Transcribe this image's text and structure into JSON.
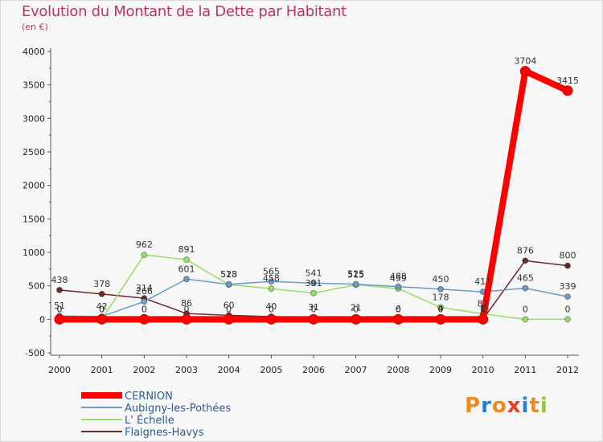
{
  "chart_data": {
    "type": "line",
    "title": "Evolution du Montant de la Dette par Habitant",
    "unit_label": "(en €)",
    "xlabel": "",
    "ylabel": "",
    "x": [
      "2000",
      "2001",
      "2002",
      "2003",
      "2004",
      "2005",
      "2006",
      "2007",
      "2008",
      "2009",
      "2010",
      "2011",
      "2012"
    ],
    "ylim": [
      -500,
      4000
    ],
    "yticks": [
      -500,
      0,
      500,
      1000,
      1500,
      2000,
      2500,
      3000,
      3500,
      4000
    ],
    "grid": false,
    "legend_position": "bottom-left",
    "series": [
      {
        "name": "CERNION",
        "color": "#ff0000",
        "width": 8,
        "values": [
          0,
          0,
          0,
          0,
          0,
          0,
          0,
          0,
          0,
          0,
          0,
          3704,
          3415
        ],
        "labels": [
          "0",
          "0",
          "0",
          "0",
          "0",
          "0",
          "0",
          "0",
          "0",
          "0",
          "0",
          "3704",
          "3415"
        ]
      },
      {
        "name": "Aubigny-les-Pothées",
        "color": "#6a9dc8",
        "width": 1.5,
        "values": [
          51,
          42,
          266,
          601,
          523,
          565,
          541,
          525,
          488,
          450,
          411,
          465,
          339
        ],
        "labels": [
          "51",
          "42",
          "266",
          "601",
          "523",
          "565",
          "541",
          "525",
          "488",
          "450",
          "411",
          "465",
          "339"
        ]
      },
      {
        "name": "L' Échelle",
        "color": "#99dd66",
        "width": 1.5,
        "values": [
          0,
          0,
          962,
          891,
          518,
          458,
          391,
          515,
          459,
          178,
          82,
          0,
          0
        ],
        "labels": [
          "0",
          "0",
          "962",
          "891",
          "518",
          "458",
          "391",
          "515",
          "459",
          "178",
          "82",
          "0",
          "0"
        ]
      },
      {
        "name": "Flaignes-Havys",
        "color": "#6b2a2a",
        "width": 1.5,
        "values": [
          438,
          378,
          314,
          86,
          60,
          40,
          31,
          21,
          6,
          4,
          1,
          876,
          800
        ],
        "labels": [
          "438",
          "378",
          "314",
          "86",
          "60",
          "40",
          "31",
          "21",
          "6",
          "4",
          "1",
          "876",
          "800"
        ]
      }
    ]
  },
  "logo": {
    "text": "Proxiti",
    "letters": [
      "P",
      "r",
      "o",
      "x",
      "i",
      "t",
      "i"
    ]
  }
}
